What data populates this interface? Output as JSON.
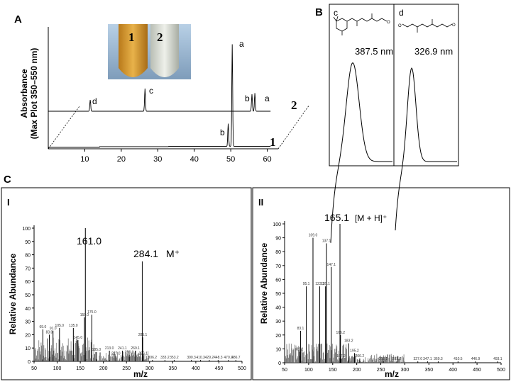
{
  "panels": {
    "A": "A",
    "B": "B",
    "C": "C",
    "CI": "I",
    "CII": "II"
  },
  "hplc": {
    "ylabel_line1": "Absorbance",
    "ylabel_line2": "(Max Plot 350–550 nm)",
    "xticks": [
      "10",
      "20",
      "30",
      "40",
      "50",
      "60"
    ],
    "trace1_label": "1",
    "trace2_label": "2",
    "peaks": {
      "a1": "a",
      "a2": "a",
      "b1": "b",
      "b2": "b",
      "c": "c",
      "d": "d"
    },
    "tube_labels": [
      "1",
      "2"
    ]
  },
  "uv": {
    "c_label": "c",
    "d_label": "d",
    "c_lambda": "387.5 nm",
    "d_lambda": "326.9 nm"
  },
  "ms1": {
    "ylabel": "Relative Abundance",
    "xlabel": "m/z",
    "yticks": [
      "0",
      "10",
      "20",
      "30",
      "40",
      "50",
      "60",
      "70",
      "80",
      "90",
      "100"
    ],
    "xticks": [
      "50",
      "100",
      "150",
      "200",
      "250",
      "300",
      "350",
      "400",
      "450",
      "500"
    ],
    "base_peak": "161.0",
    "mol_peak": "284.1",
    "mol_ion": "M⁺",
    "minor_labels": [
      "69.0",
      "83.0",
      "91.0",
      "105.0",
      "135.0",
      "145.0",
      "159.0",
      "175.0",
      "185.0",
      "213.0",
      "227.0",
      "241.1",
      "256.1",
      "269.1",
      "285.1",
      "286.1",
      "306.2",
      "333.2",
      "353.2",
      "390.3",
      "410.3",
      "429.2",
      "448.3",
      "470.3",
      "486.7"
    ]
  },
  "ms2": {
    "ylabel": "Relative Abundance",
    "xlabel": "m/z",
    "yticks": [
      "0",
      "10",
      "20",
      "30",
      "40",
      "50",
      "60",
      "70",
      "80",
      "90",
      "100"
    ],
    "xticks": [
      "50",
      "100",
      "150",
      "200",
      "250",
      "300",
      "350",
      "400",
      "450",
      "500"
    ],
    "base_peak": "165.1",
    "ion_label": "[M + H]⁺",
    "minor_labels": [
      "81.2",
      "83.1",
      "95.1",
      "109.0",
      "123.1",
      "135.1",
      "137.1",
      "147.1",
      "166.2",
      "167.2",
      "183.2",
      "195.2",
      "206.2",
      "255.2",
      "283.2",
      "327.0",
      "347.1",
      "369.3",
      "410.5",
      "446.9",
      "493.1"
    ]
  },
  "chart_data": [
    {
      "type": "line",
      "title": "",
      "xlabel": "",
      "ylabel": "Absorbance (Max Plot 350–550 nm)",
      "xlim": [
        0,
        63
      ],
      "series": [
        {
          "name": "1",
          "peaks": [
            {
              "label": "b",
              "x": 49.3,
              "height": 0.2
            },
            {
              "label": "a",
              "x": 50.4,
              "height": 0.9
            }
          ]
        },
        {
          "name": "2",
          "peaks": [
            {
              "label": "d",
              "x": 11.5,
              "height": 0.1
            },
            {
              "label": "c",
              "x": 26.5,
              "height": 0.2
            },
            {
              "label": "b",
              "x": 55.8,
              "height": 0.15
            },
            {
              "label": "a",
              "x": 56.6,
              "height": 0.16
            }
          ]
        }
      ]
    },
    {
      "type": "line",
      "title": "",
      "series": [
        {
          "name": "c",
          "lambda_max_nm": 387.5
        },
        {
          "name": "d",
          "lambda_max_nm": 326.9
        }
      ]
    },
    {
      "type": "bar",
      "title": "",
      "xlabel": "m/z",
      "ylabel": "Relative Abundance",
      "xlim": [
        50,
        500
      ],
      "ylim": [
        0,
        100
      ],
      "x": [
        69.0,
        83.0,
        91.0,
        105.0,
        135.0,
        145.0,
        159.0,
        161.0,
        175.0,
        185.0,
        213.0,
        227.0,
        241.1,
        256.1,
        269.1,
        284.1,
        285.1,
        286.1,
        306.2,
        333.2,
        353.2,
        390.3,
        410.3,
        429.2,
        448.3,
        470.3,
        486.7
      ],
      "values": [
        24,
        20,
        23,
        25,
        25,
        16,
        33,
        100,
        35,
        7,
        8,
        4,
        8,
        5,
        8,
        75,
        18,
        4,
        1,
        1,
        1,
        1,
        1,
        1,
        1,
        1,
        1
      ]
    },
    {
      "type": "bar",
      "title": "",
      "xlabel": "m/z",
      "ylabel": "Relative Abundance",
      "xlim": [
        50,
        500
      ],
      "ylim": [
        0,
        100
      ],
      "x": [
        81.2,
        83.1,
        95.1,
        109.0,
        123.1,
        135.1,
        137.1,
        147.1,
        165.1,
        166.2,
        167.2,
        183.2,
        195.2,
        206.2,
        255.2,
        283.2,
        327.0,
        347.1,
        369.3,
        410.5,
        446.9,
        493.1
      ],
      "values": [
        8,
        23,
        55,
        90,
        55,
        55,
        86,
        69,
        100,
        20,
        3,
        14,
        7,
        3,
        1,
        1,
        1,
        1,
        1,
        1,
        1,
        1
      ]
    }
  ]
}
